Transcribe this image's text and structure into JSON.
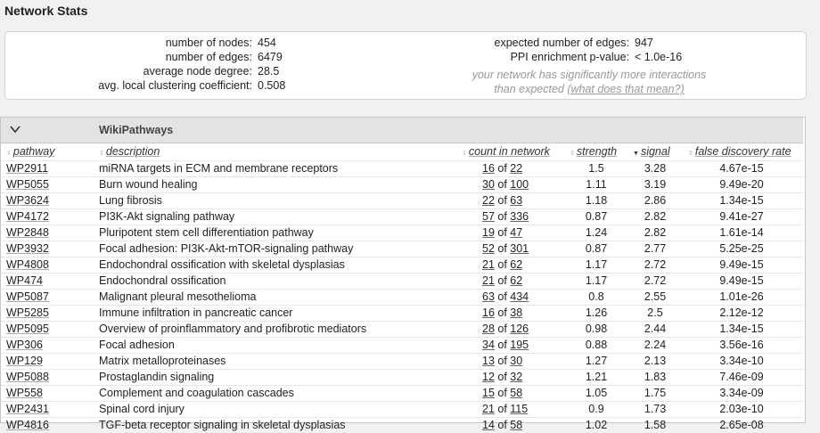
{
  "page": {
    "title": "Network Stats"
  },
  "stats": {
    "left": [
      {
        "label": "number of nodes:",
        "value": "454"
      },
      {
        "label": "number of edges:",
        "value": "6479"
      },
      {
        "label": "average node degree:",
        "value": "28.5"
      },
      {
        "label": "avg. local clustering coefficient:",
        "value": "0.508"
      }
    ],
    "right": [
      {
        "label": "expected number of edges:",
        "value": "947"
      },
      {
        "label": "PPI enrichment p-value:",
        "value": "< 1.0e-16"
      }
    ],
    "note_line1": "your network has significantly more interactions",
    "note_line2_prefix": "than expected ",
    "note_link": "(what does that mean?)"
  },
  "panel": {
    "title": "WikiPathways",
    "toggle_icon": "chevron-down-icon",
    "columns": {
      "pathway": "pathway",
      "description": "description",
      "count": "count in network",
      "strength": "strength",
      "signal": "signal",
      "fdr": "false discovery rate"
    },
    "rows": [
      {
        "id": "WP2911",
        "desc": "miRNA targets in ECM and membrane receptors",
        "count": "16",
        "total": "22",
        "strength": "1.5",
        "signal": "3.28",
        "fdr": "4.67e-15"
      },
      {
        "id": "WP5055",
        "desc": "Burn wound healing",
        "count": "30",
        "total": "100",
        "strength": "1.11",
        "signal": "3.19",
        "fdr": "9.49e-20"
      },
      {
        "id": "WP3624",
        "desc": "Lung fibrosis",
        "count": "22",
        "total": "63",
        "strength": "1.18",
        "signal": "2.86",
        "fdr": "1.34e-15"
      },
      {
        "id": "WP4172",
        "desc": "PI3K-Akt signaling pathway",
        "count": "57",
        "total": "336",
        "strength": "0.87",
        "signal": "2.82",
        "fdr": "9.41e-27"
      },
      {
        "id": "WP2848",
        "desc": "Pluripotent stem cell differentiation pathway",
        "count": "19",
        "total": "47",
        "strength": "1.24",
        "signal": "2.82",
        "fdr": "1.61e-14"
      },
      {
        "id": "WP3932",
        "desc": "Focal adhesion: PI3K-Akt-mTOR-signaling pathway",
        "count": "52",
        "total": "301",
        "strength": "0.87",
        "signal": "2.77",
        "fdr": "5.25e-25"
      },
      {
        "id": "WP4808",
        "desc": "Endochondral ossification with skeletal dysplasias",
        "count": "21",
        "total": "62",
        "strength": "1.17",
        "signal": "2.72",
        "fdr": "9.49e-15"
      },
      {
        "id": "WP474",
        "desc": "Endochondral ossification",
        "count": "21",
        "total": "62",
        "strength": "1.17",
        "signal": "2.72",
        "fdr": "9.49e-15"
      },
      {
        "id": "WP5087",
        "desc": "Malignant pleural mesothelioma",
        "count": "63",
        "total": "434",
        "strength": "0.8",
        "signal": "2.55",
        "fdr": "1.01e-26"
      },
      {
        "id": "WP5285",
        "desc": "Immune infiltration in pancreatic cancer",
        "count": "16",
        "total": "38",
        "strength": "1.26",
        "signal": "2.5",
        "fdr": "2.12e-12"
      },
      {
        "id": "WP5095",
        "desc": "Overview of proinflammatory and profibrotic mediators",
        "count": "28",
        "total": "126",
        "strength": "0.98",
        "signal": "2.44",
        "fdr": "1.34e-15"
      },
      {
        "id": "WP306",
        "desc": "Focal adhesion",
        "count": "34",
        "total": "195",
        "strength": "0.88",
        "signal": "2.24",
        "fdr": "3.56e-16"
      },
      {
        "id": "WP129",
        "desc": "Matrix metalloproteinases",
        "count": "13",
        "total": "30",
        "strength": "1.27",
        "signal": "2.13",
        "fdr": "3.34e-10"
      },
      {
        "id": "WP5088",
        "desc": "Prostaglandin signaling",
        "count": "12",
        "total": "32",
        "strength": "1.21",
        "signal": "1.83",
        "fdr": "7.46e-09"
      },
      {
        "id": "WP558",
        "desc": "Complement and coagulation cascades",
        "count": "15",
        "total": "58",
        "strength": "1.05",
        "signal": "1.75",
        "fdr": "3.34e-09"
      },
      {
        "id": "WP2431",
        "desc": "Spinal cord injury",
        "count": "21",
        "total": "115",
        "strength": "0.9",
        "signal": "1.73",
        "fdr": "2.03e-10"
      },
      {
        "id": "WP4816",
        "desc": "TGF-beta receptor signaling in skeletal dysplasias",
        "count": "14",
        "total": "58",
        "strength": "1.02",
        "signal": "1.58",
        "fdr": "2.65e-08"
      }
    ]
  }
}
